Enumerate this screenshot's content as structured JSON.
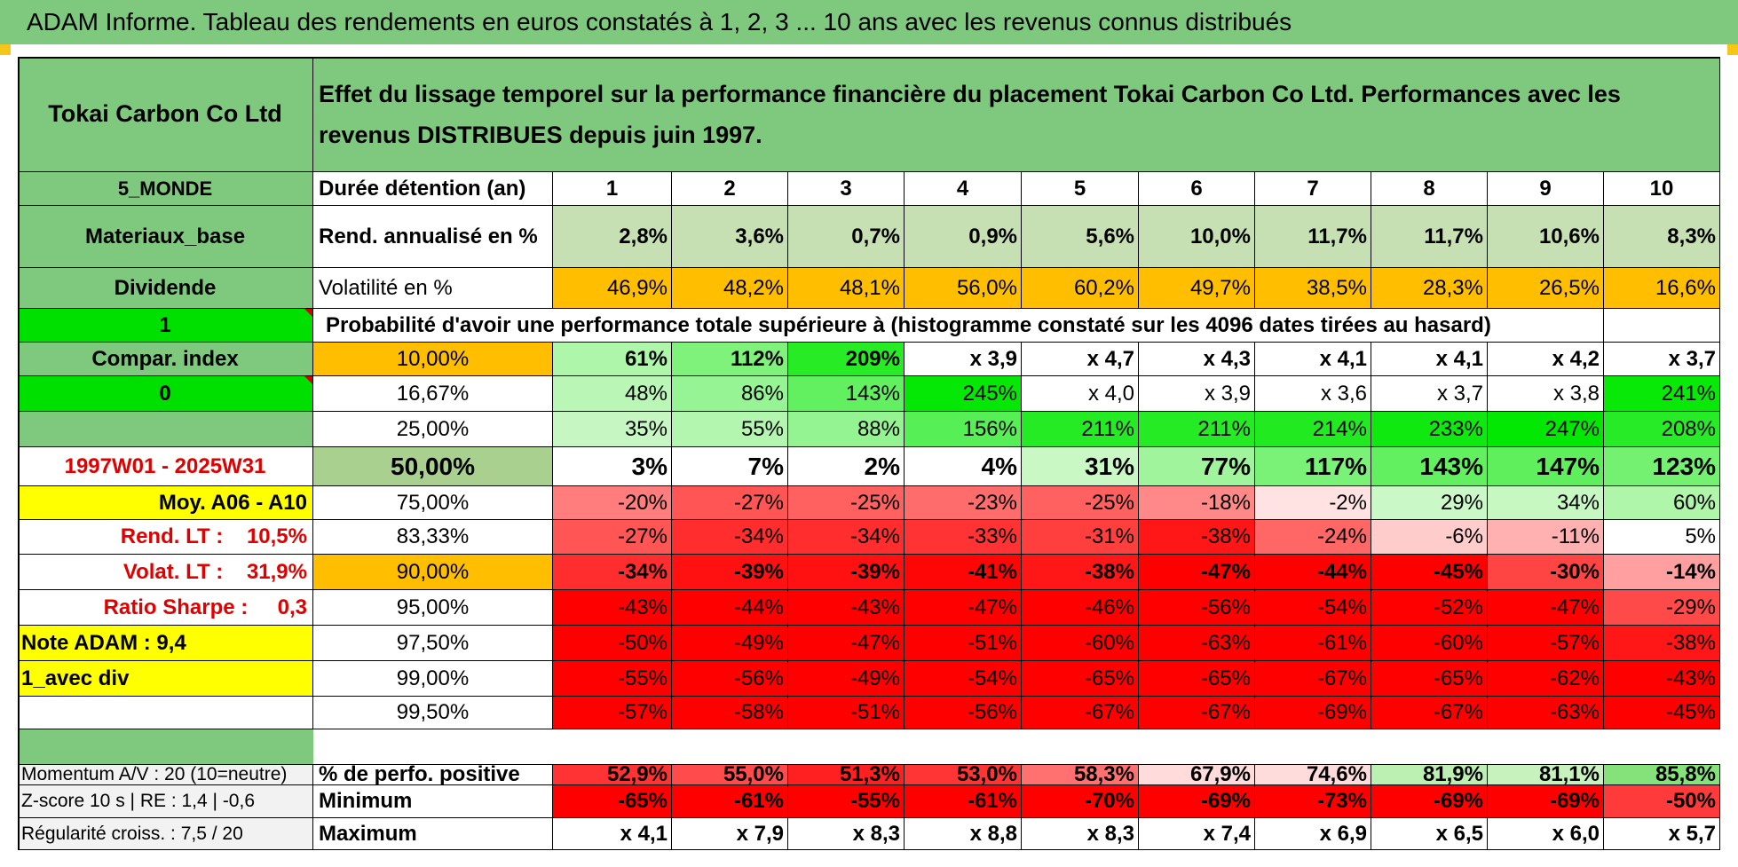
{
  "title": "ADAM Informe. Tableau des rendements en euros constatés à 1, 2, 3 ... 10 ans avec les revenus connus distribués",
  "company": "Tokai Carbon Co Ltd",
  "description": "Effet du lissage temporel sur la performance financière du placement Tokai Carbon Co Ltd. Performances avec les revenus DISTRIBUES depuis juin 1997.",
  "left_labels": {
    "region": "5_MONDE",
    "sector": "Materiaux_base",
    "type": "Dividende",
    "one": "1",
    "compar": "Compar. index",
    "zero": "0",
    "blank": "",
    "period": "1997W01 - 2025W31",
    "moy": "Moy. A06 - A10",
    "rend_lt": "Rend. LT :    10,5%",
    "volat_lt": "Volat. LT :    31,9%",
    "sharpe": "Ratio Sharpe :     0,3",
    "note": "Note ADAM : 9,4",
    "avec_div": "1_avec div",
    "blank2": "",
    "momentum": "Momentum A/V : 20 (10=neutre)",
    "zscore": "Z-score 10 s | RE : 1,4 | -0,6",
    "regularite": "Régularité croiss. : 7,5 / 20"
  },
  "colors": {
    "green_header": "#7fc97f",
    "orange": "#ffbf00",
    "yellow": "#ffff00",
    "bright_green": "#00e000",
    "red": "#ff0000"
  },
  "headers": {
    "duree": "Durée détention (an)",
    "rend": "Rend. annualisé en %",
    "vol": "Volatilité en %",
    "prob": "Probabilité d'avoir une performance totale supérieure à (histogramme constaté sur les 4096 dates tirées au hasard)",
    "pos": "% de perfo. positive",
    "min": "Minimum",
    "max": "Maximum"
  },
  "years": [
    "1",
    "2",
    "3",
    "4",
    "5",
    "6",
    "7",
    "8",
    "9",
    "10"
  ],
  "rend": [
    "2,8%",
    "3,6%",
    "0,7%",
    "0,9%",
    "5,6%",
    "10,0%",
    "11,7%",
    "11,7%",
    "10,6%",
    "8,3%"
  ],
  "vol": [
    "46,9%",
    "48,2%",
    "48,1%",
    "56,0%",
    "60,2%",
    "49,7%",
    "38,5%",
    "28,3%",
    "26,5%",
    "16,6%"
  ],
  "prob_rows": [
    {
      "pct": "10,00%",
      "values": [
        "61%",
        "112%",
        "209%",
        "x 3,9",
        "x 4,7",
        "x 4,3",
        "x 4,1",
        "x 4,1",
        "x 4,2",
        "x 3,7"
      ]
    },
    {
      "pct": "16,67%",
      "values": [
        "48%",
        "86%",
        "143%",
        "245%",
        "x 4,0",
        "x 3,9",
        "x 3,6",
        "x 3,7",
        "x 3,8",
        "241%"
      ]
    },
    {
      "pct": "25,00%",
      "values": [
        "35%",
        "55%",
        "88%",
        "156%",
        "211%",
        "211%",
        "214%",
        "233%",
        "247%",
        "208%"
      ]
    },
    {
      "pct": "50,00%",
      "values": [
        "3%",
        "7%",
        "2%",
        "4%",
        "31%",
        "77%",
        "117%",
        "143%",
        "147%",
        "123%"
      ]
    },
    {
      "pct": "75,00%",
      "values": [
        "-20%",
        "-27%",
        "-25%",
        "-23%",
        "-25%",
        "-18%",
        "-2%",
        "29%",
        "34%",
        "60%"
      ]
    },
    {
      "pct": "83,33%",
      "values": [
        "-27%",
        "-34%",
        "-34%",
        "-33%",
        "-31%",
        "-38%",
        "-24%",
        "-6%",
        "-11%",
        "5%"
      ]
    },
    {
      "pct": "90,00%",
      "values": [
        "-34%",
        "-39%",
        "-39%",
        "-41%",
        "-38%",
        "-47%",
        "-44%",
        "-45%",
        "-30%",
        "-14%"
      ]
    },
    {
      "pct": "95,00%",
      "values": [
        "-43%",
        "-44%",
        "-43%",
        "-47%",
        "-46%",
        "-56%",
        "-54%",
        "-52%",
        "-47%",
        "-29%"
      ]
    },
    {
      "pct": "97,50%",
      "values": [
        "-50%",
        "-49%",
        "-47%",
        "-51%",
        "-60%",
        "-63%",
        "-61%",
        "-60%",
        "-57%",
        "-38%"
      ]
    },
    {
      "pct": "99,00%",
      "values": [
        "-55%",
        "-56%",
        "-49%",
        "-54%",
        "-65%",
        "-65%",
        "-67%",
        "-65%",
        "-62%",
        "-43%"
      ]
    },
    {
      "pct": "99,50%",
      "values": [
        "-57%",
        "-58%",
        "-51%",
        "-56%",
        "-67%",
        "-67%",
        "-69%",
        "-67%",
        "-63%",
        "-45%"
      ]
    }
  ],
  "pos": [
    "52,9%",
    "55,0%",
    "51,3%",
    "53,0%",
    "58,3%",
    "67,9%",
    "74,6%",
    "81,9%",
    "81,1%",
    "85,8%"
  ],
  "min": [
    "-65%",
    "-61%",
    "-55%",
    "-61%",
    "-70%",
    "-69%",
    "-73%",
    "-69%",
    "-69%",
    "-50%"
  ],
  "max": [
    "x 4,1",
    "x 7,9",
    "x 8,3",
    "x 8,8",
    "x 8,3",
    "x 7,4",
    "x 6,9",
    "x 6,5",
    "x 6,0",
    "x 5,7"
  ]
}
